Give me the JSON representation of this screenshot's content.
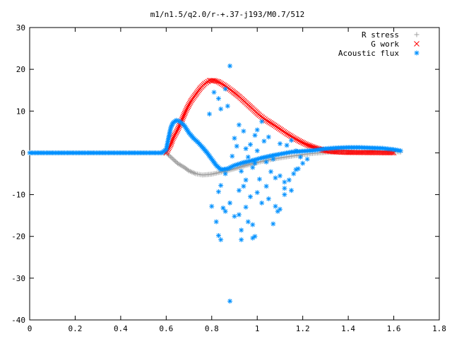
{
  "chart_data": {
    "type": "scatter",
    "title": "m1/n1.5/q2.0/r-+.37-j193/M0.7/512",
    "xlabel": "",
    "ylabel": "",
    "xlim": [
      0,
      1.8
    ],
    "ylim": [
      -40,
      30
    ],
    "xticks": [
      "0",
      "0.2",
      "0.4",
      "0.6",
      "0.8",
      "1",
      "1.2",
      "1.4",
      "1.6",
      "1.8"
    ],
    "yticks": [
      "30",
      "20",
      "10",
      "0",
      "-10",
      "-20",
      "-30",
      "-40"
    ],
    "xtick_values": [
      0,
      0.2,
      0.4,
      0.6,
      0.8,
      1.0,
      1.2,
      1.4,
      1.6,
      1.8
    ],
    "ytick_values": [
      30,
      20,
      10,
      0,
      -10,
      -20,
      -30,
      -40
    ],
    "grid": false,
    "legend_position": "top-right",
    "series": [
      {
        "name": "R stress",
        "marker": "plus",
        "color": "#a0a0a0",
        "points": [
          [
            0.0,
            0
          ],
          [
            0.1,
            0
          ],
          [
            0.2,
            0
          ],
          [
            0.3,
            0
          ],
          [
            0.4,
            0
          ],
          [
            0.5,
            0
          ],
          [
            0.6,
            0
          ],
          [
            0.61,
            -0.5
          ],
          [
            0.63,
            -1.5
          ],
          [
            0.65,
            -2.5
          ],
          [
            0.68,
            -3.5
          ],
          [
            0.7,
            -4.3
          ],
          [
            0.73,
            -5.0
          ],
          [
            0.76,
            -5.3
          ],
          [
            0.8,
            -5.1
          ],
          [
            0.85,
            -4.5
          ],
          [
            0.9,
            -3.8
          ],
          [
            0.95,
            -3.0
          ],
          [
            1.0,
            -2.3
          ],
          [
            1.05,
            -1.7
          ],
          [
            1.1,
            -1.2
          ],
          [
            1.15,
            -0.8
          ],
          [
            1.2,
            -0.4
          ],
          [
            1.25,
            -0.1
          ],
          [
            1.3,
            0.1
          ],
          [
            1.35,
            0.3
          ],
          [
            1.4,
            0.4
          ],
          [
            1.45,
            0.5
          ],
          [
            1.5,
            0.5
          ],
          [
            1.55,
            0.4
          ],
          [
            1.6,
            0.3
          ],
          [
            1.63,
            0.2
          ]
        ]
      },
      {
        "name": "G work",
        "marker": "cross",
        "color": "#ff0000",
        "points": [
          [
            0.6,
            0
          ],
          [
            0.61,
            1.0
          ],
          [
            0.62,
            2.0
          ],
          [
            0.63,
            3.5
          ],
          [
            0.65,
            5.5
          ],
          [
            0.67,
            8.0
          ],
          [
            0.69,
            10.5
          ],
          [
            0.71,
            12.5
          ],
          [
            0.73,
            14.0
          ],
          [
            0.75,
            15.5
          ],
          [
            0.77,
            16.6
          ],
          [
            0.79,
            17.3
          ],
          [
            0.81,
            17.3
          ],
          [
            0.83,
            17.0
          ],
          [
            0.86,
            16.0
          ],
          [
            0.89,
            14.8
          ],
          [
            0.92,
            13.5
          ],
          [
            0.95,
            12.0
          ],
          [
            0.98,
            10.5
          ],
          [
            1.01,
            9.0
          ],
          [
            1.04,
            7.8
          ],
          [
            1.07,
            6.8
          ],
          [
            1.1,
            5.7
          ],
          [
            1.13,
            4.6
          ],
          [
            1.16,
            3.6
          ],
          [
            1.19,
            2.7
          ],
          [
            1.22,
            1.9
          ],
          [
            1.25,
            1.3
          ],
          [
            1.28,
            0.8
          ],
          [
            1.31,
            0.4
          ],
          [
            1.35,
            0.2
          ],
          [
            1.4,
            0.1
          ],
          [
            1.5,
            0.05
          ],
          [
            1.6,
            0.02
          ]
        ]
      },
      {
        "name": "Acoustic flux",
        "marker": "star",
        "color": "#0090ff",
        "points": [
          [
            0.0,
            0
          ],
          [
            0.1,
            0
          ],
          [
            0.2,
            0
          ],
          [
            0.3,
            0
          ],
          [
            0.4,
            0
          ],
          [
            0.5,
            0
          ],
          [
            0.58,
            0
          ],
          [
            0.6,
            0.8
          ],
          [
            0.61,
            3.5
          ],
          [
            0.62,
            6.0
          ],
          [
            0.63,
            7.2
          ],
          [
            0.645,
            7.8
          ],
          [
            0.66,
            7.5
          ],
          [
            0.68,
            6.5
          ],
          [
            0.7,
            4.8
          ],
          [
            0.72,
            3.5
          ],
          [
            0.74,
            2.5
          ],
          [
            0.76,
            1.3
          ],
          [
            0.78,
            0
          ],
          [
            0.8,
            -1.5
          ],
          [
            0.82,
            -3.0
          ],
          [
            0.84,
            -4.0
          ],
          [
            0.87,
            -3.8
          ],
          [
            0.9,
            -3.0
          ],
          [
            0.94,
            -2.3
          ],
          [
            0.98,
            -1.8
          ],
          [
            1.02,
            -1.2
          ],
          [
            1.06,
            -0.7
          ],
          [
            1.1,
            -0.3
          ],
          [
            1.15,
            0.2
          ],
          [
            1.2,
            0.4
          ],
          [
            1.25,
            0.6
          ],
          [
            1.3,
            1.0
          ],
          [
            1.35,
            1.2
          ],
          [
            1.4,
            1.3
          ],
          [
            1.45,
            1.3
          ],
          [
            1.5,
            1.2
          ],
          [
            1.55,
            1.1
          ],
          [
            1.6,
            0.8
          ],
          [
            1.63,
            0.5
          ],
          [
            0.88,
            20.8
          ],
          [
            0.83,
            13.0
          ],
          [
            0.84,
            10.5
          ],
          [
            0.87,
            11.2
          ],
          [
            0.79,
            9.3
          ],
          [
            0.86,
            -5.0
          ],
          [
            0.84,
            -7.8
          ],
          [
            0.83,
            -9.3
          ],
          [
            0.8,
            -12.8
          ],
          [
            0.85,
            -13.2
          ],
          [
            0.86,
            -14.0
          ],
          [
            0.82,
            -16.5
          ],
          [
            0.83,
            -19.8
          ],
          [
            0.84,
            -20.8
          ],
          [
            0.88,
            -12.0
          ],
          [
            0.9,
            -15.2
          ],
          [
            0.92,
            -14.8
          ],
          [
            0.93,
            -18.5
          ],
          [
            0.93,
            -20.8
          ],
          [
            0.95,
            -13.0
          ],
          [
            0.96,
            -16.5
          ],
          [
            0.98,
            -17.2
          ],
          [
            0.98,
            -20.4
          ],
          [
            0.99,
            -20.0
          ],
          [
            0.88,
            -35.5
          ],
          [
            0.92,
            -9.0
          ],
          [
            0.94,
            -8.0
          ],
          [
            0.97,
            -10.5
          ],
          [
            1.0,
            -9.5
          ],
          [
            1.02,
            -12.0
          ],
          [
            1.05,
            -11.0
          ],
          [
            1.08,
            -12.8
          ],
          [
            1.1,
            -13.5
          ],
          [
            1.12,
            -10.0
          ],
          [
            1.07,
            -17.0
          ],
          [
            1.09,
            -14.0
          ],
          [
            1.0,
            5.5
          ],
          [
            1.02,
            7.5
          ],
          [
            0.99,
            4.2
          ],
          [
            0.97,
            2.0
          ],
          [
            0.95,
            1.0
          ],
          [
            0.96,
            -1.0
          ],
          [
            0.99,
            -2.5
          ],
          [
            1.04,
            -2.2
          ],
          [
            1.06,
            -4.5
          ],
          [
            1.08,
            -6.0
          ],
          [
            1.1,
            -5.5
          ],
          [
            1.12,
            -7.0
          ],
          [
            1.14,
            -6.5
          ],
          [
            1.16,
            -5.0
          ],
          [
            1.18,
            -3.8
          ],
          [
            1.2,
            -2.5
          ],
          [
            1.22,
            -1.5
          ],
          [
            1.05,
            3.8
          ],
          [
            1.03,
            2.8
          ],
          [
            1.1,
            2.2
          ],
          [
            1.13,
            1.8
          ],
          [
            1.15,
            3.0
          ],
          [
            1.17,
            0.5
          ],
          [
            1.19,
            -1.0
          ],
          [
            0.92,
            6.7
          ],
          [
            0.94,
            5.2
          ],
          [
            0.9,
            3.5
          ],
          [
            0.91,
            1.6
          ],
          [
            0.89,
            -0.8
          ],
          [
            0.93,
            -4.4
          ],
          [
            1.01,
            -6.3
          ],
          [
            1.04,
            -8.0
          ],
          [
            1.12,
            -8.5
          ],
          [
            1.15,
            -9.0
          ],
          [
            1.17,
            -4.0
          ],
          [
            0.95,
            -6.5
          ],
          [
            0.98,
            -3.5
          ],
          [
            1.0,
            0.5
          ],
          [
            1.07,
            -1.5
          ],
          [
            0.86,
            15.3
          ],
          [
            0.81,
            14.5
          ]
        ]
      }
    ]
  }
}
